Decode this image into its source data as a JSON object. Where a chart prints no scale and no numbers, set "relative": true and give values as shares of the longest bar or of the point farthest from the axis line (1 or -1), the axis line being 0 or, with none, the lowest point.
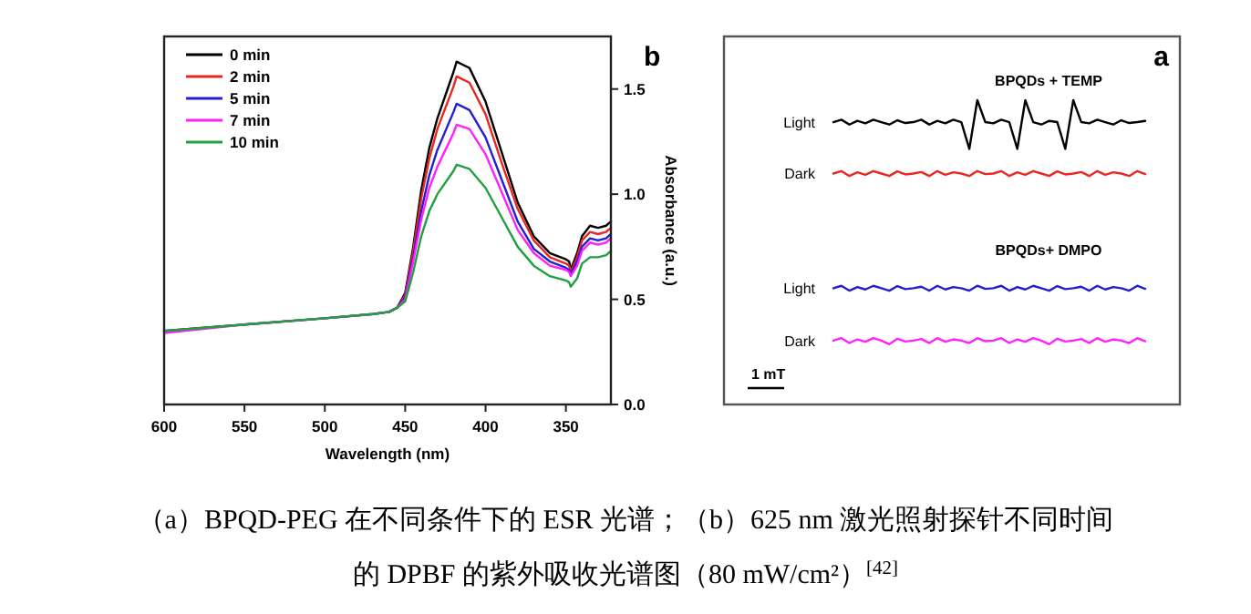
{
  "chart_data": [
    {
      "type": "line",
      "title": "b",
      "xlabel": "Wavelength (nm)",
      "ylabel": "Absorbance (a.u.)",
      "x": [
        600,
        550,
        500,
        470,
        460,
        455,
        450,
        445,
        440,
        435,
        430,
        420,
        418,
        410,
        400,
        390,
        380,
        370,
        360,
        350,
        348,
        347,
        343,
        340,
        335,
        330,
        325,
        322
      ],
      "xlim": [
        600,
        322
      ],
      "xticks": [
        600,
        550,
        500,
        450,
        400,
        350
      ],
      "ylim": [
        0,
        1.75
      ],
      "yticks": [
        {
          "value": 0,
          "label": "0.0"
        },
        {
          "value": 0.5,
          "label": "0.5"
        },
        {
          "value": 1,
          "label": "1.0"
        },
        {
          "value": 1.5,
          "label": "1.5"
        }
      ],
      "legend": "top left",
      "line_style": "solid",
      "marker": "none",
      "series": [
        {
          "name": "0 min",
          "color": "#000000",
          "values": [
            0.35,
            0.38,
            0.41,
            0.43,
            0.44,
            0.46,
            0.53,
            0.75,
            1.02,
            1.22,
            1.36,
            1.58,
            1.63,
            1.6,
            1.44,
            1.2,
            0.96,
            0.8,
            0.72,
            0.69,
            0.68,
            0.64,
            0.72,
            0.8,
            0.85,
            0.84,
            0.85,
            0.87
          ]
        },
        {
          "name": "2 min",
          "color": "#e8281e",
          "values": [
            null,
            null,
            null,
            null,
            0.44,
            0.46,
            0.52,
            0.73,
            0.98,
            1.17,
            1.31,
            1.51,
            1.56,
            1.53,
            1.38,
            1.15,
            0.93,
            0.78,
            0.7,
            0.67,
            0.66,
            0.63,
            0.7,
            0.78,
            0.82,
            0.81,
            0.82,
            0.84
          ]
        },
        {
          "name": "5 min",
          "color": "#2020d0",
          "values": [
            null,
            null,
            null,
            null,
            0.44,
            0.46,
            0.51,
            0.7,
            0.92,
            1.09,
            1.21,
            1.39,
            1.43,
            1.4,
            1.27,
            1.07,
            0.87,
            0.74,
            0.68,
            0.65,
            0.64,
            0.62,
            0.68,
            0.75,
            0.79,
            0.78,
            0.79,
            0.81
          ]
        },
        {
          "name": "7 min",
          "color": "#ff20ff",
          "values": [
            0.34,
            0.38,
            0.41,
            0.43,
            0.44,
            0.46,
            0.5,
            0.68,
            0.88,
            1.03,
            1.13,
            1.29,
            1.33,
            1.31,
            1.19,
            1.01,
            0.83,
            0.72,
            0.66,
            0.64,
            0.63,
            0.61,
            0.66,
            0.73,
            0.77,
            0.76,
            0.77,
            0.79
          ]
        },
        {
          "name": "10 min",
          "color": "#20a040",
          "values": [
            0.35,
            0.38,
            0.41,
            0.43,
            0.44,
            0.46,
            0.49,
            0.63,
            0.8,
            0.92,
            1.0,
            1.11,
            1.14,
            1.12,
            1.03,
            0.89,
            0.75,
            0.66,
            0.61,
            0.59,
            0.58,
            0.56,
            0.6,
            0.67,
            0.7,
            0.7,
            0.71,
            0.73
          ]
        }
      ],
      "annotations": [
        "（a）BPQD-PEG 在不同条件下的 ESR 光谱；（b）625 nm 激光照射探针不同时间",
        "的 DPBF 的紫外吸收光谱图（80 mW/cm²）$^{[42]}$"
      ]
    },
    {
      "type": "line",
      "title": "a",
      "relative": true,
      "legend": false,
      "line_style": "solid",
      "marker": "none",
      "categories": [
        null,
        null,
        null,
        null,
        null,
        null,
        null,
        null,
        null,
        null,
        null,
        null,
        null,
        null,
        null,
        null,
        null,
        null,
        null,
        null,
        null,
        null,
        null,
        null,
        null,
        null,
        null,
        null,
        null,
        null,
        null,
        null,
        null,
        null,
        null,
        null,
        null,
        null,
        null,
        null
      ],
      "series": [
        {
          "name": "Light",
          "color": "#000000",
          "values": [
            0.928,
            0.936,
            0.92,
            0.932,
            0.924,
            0.936,
            0.928,
            0.92,
            0.934,
            0.925,
            0.928,
            0.936,
            0.92,
            0.932,
            0.924,
            0.936,
            0.928,
            0.84,
            1.0,
            0.928,
            0.924,
            0.936,
            0.928,
            0.84,
            1.0,
            0.928,
            0.92,
            0.932,
            0.928,
            0.84,
            1.0,
            0.928,
            0.924,
            0.936,
            0.928,
            0.92,
            0.934,
            0.925,
            0.928,
            0.932
          ]
        },
        {
          "name": "Dark",
          "color": "#e8281e",
          "values": [
            0.759,
            0.767,
            0.751,
            0.763,
            0.755,
            0.767,
            0.759,
            0.751,
            0.766,
            0.756,
            0.759,
            0.764,
            0.751,
            0.767,
            0.755,
            0.763,
            0.759,
            0.751,
            0.767,
            0.757,
            0.759,
            0.767,
            0.751,
            0.763,
            0.755,
            0.767,
            0.759,
            0.751,
            0.766,
            0.756,
            0.759,
            0.764,
            0.751,
            0.767,
            0.755,
            0.763,
            0.759,
            0.751,
            0.767,
            0.757
          ]
        },
        {
          "name": "Light",
          "color": "#2020d0",
          "values": [
            0.382,
            0.39,
            0.374,
            0.386,
            0.378,
            0.39,
            0.382,
            0.374,
            0.389,
            0.379,
            0.382,
            0.387,
            0.374,
            0.39,
            0.378,
            0.386,
            0.382,
            0.374,
            0.39,
            0.38,
            0.382,
            0.39,
            0.374,
            0.386,
            0.378,
            0.39,
            0.382,
            0.374,
            0.389,
            0.379,
            0.382,
            0.387,
            0.374,
            0.39,
            0.378,
            0.386,
            0.382,
            0.374,
            0.39,
            0.38
          ]
        },
        {
          "name": "Dark",
          "color": "#ff20ff",
          "values": [
            0.21,
            0.218,
            0.202,
            0.214,
            0.206,
            0.218,
            0.21,
            0.198,
            0.216,
            0.207,
            0.21,
            0.215,
            0.202,
            0.218,
            0.206,
            0.214,
            0.21,
            0.202,
            0.218,
            0.208,
            0.21,
            0.218,
            0.202,
            0.214,
            0.206,
            0.218,
            0.21,
            0.198,
            0.216,
            0.207,
            0.21,
            0.215,
            0.202,
            0.218,
            0.206,
            0.214,
            0.21,
            0.202,
            0.218,
            0.208
          ]
        }
      ],
      "annotations": [
        "BPQDs + TEMP",
        "BPQDs+ DMPO",
        "1 mT"
      ]
    }
  ]
}
